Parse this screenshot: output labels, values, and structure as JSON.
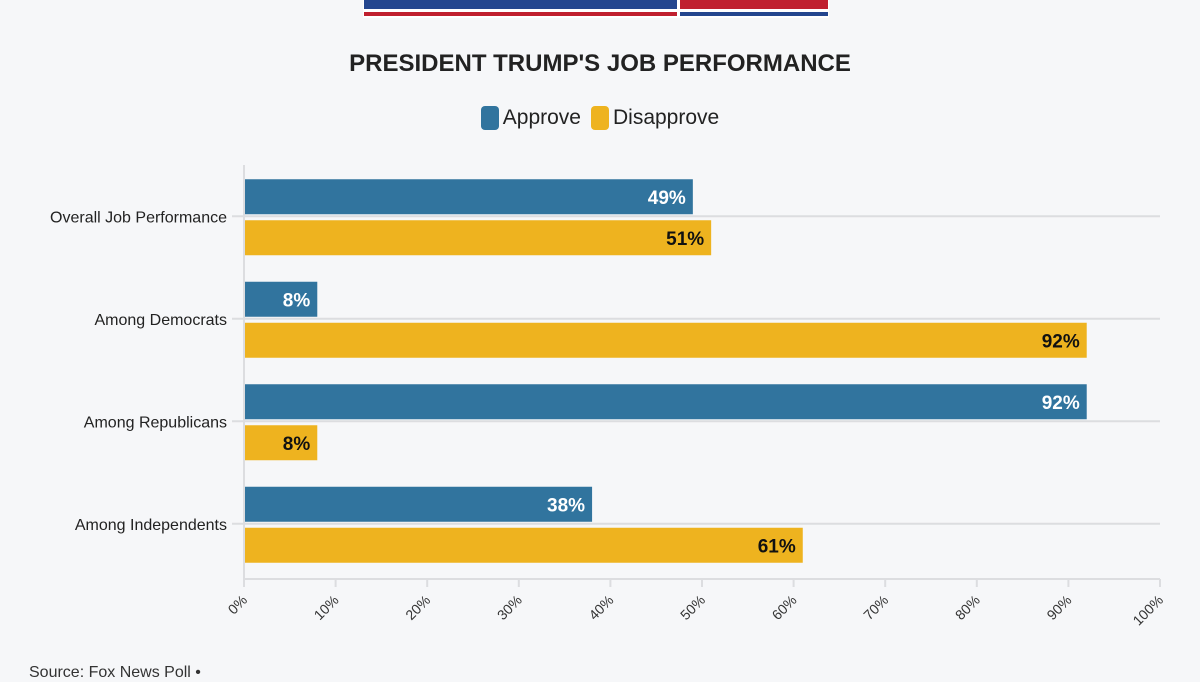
{
  "logo": {
    "text": "",
    "colors": [
      "#24468f",
      "#c0202f"
    ]
  },
  "chart_data": {
    "type": "bar",
    "orientation": "horizontal",
    "title": "PRESIDENT TRUMP'S JOB PERFORMANCE",
    "categories": [
      "Overall Job Performance",
      "Among Democrats",
      "Among Republicans",
      "Among Independents"
    ],
    "series": [
      {
        "name": "Approve",
        "color": "#31749e",
        "values": [
          49,
          8,
          92,
          38
        ]
      },
      {
        "name": "Disapprove",
        "color": "#eeb31f",
        "values": [
          51,
          92,
          8,
          61
        ]
      }
    ],
    "xlim": [
      0,
      100
    ],
    "ticks": [
      "0%",
      "10%",
      "20%",
      "30%",
      "40%",
      "50%",
      "60%",
      "70%",
      "80%",
      "90%",
      "100%"
    ],
    "value_suffix": "%",
    "legend": "top",
    "grid": true
  },
  "source": "Source: Fox News Poll •"
}
